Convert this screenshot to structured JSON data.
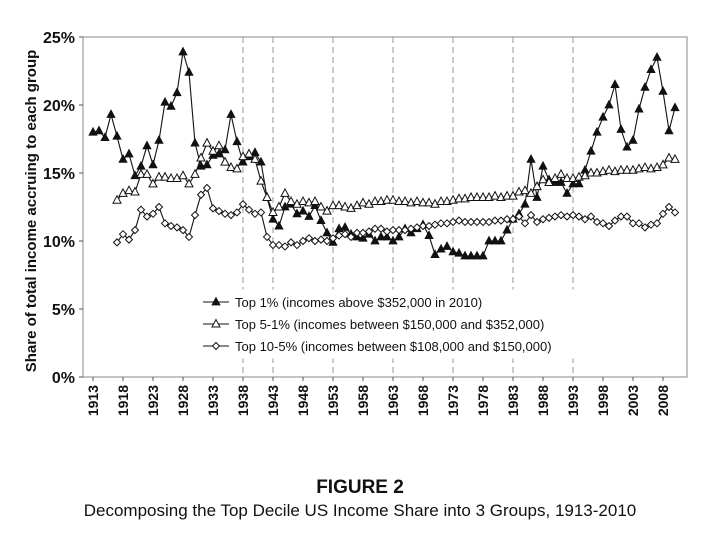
{
  "figure": {
    "title": "FIGURE 2",
    "caption": "Decomposing the Top Decile US Income Share into 3 Groups, 1913-2010"
  },
  "chart_data": {
    "type": "line",
    "ylabel": "Share of total income accruing to each group",
    "xlabel": "",
    "ylim": [
      0,
      25
    ],
    "yticks": [
      0,
      5,
      10,
      15,
      20,
      25
    ],
    "ytick_labels": [
      "0%",
      "5%",
      "10%",
      "15%",
      "20%",
      "25%"
    ],
    "xlim": [
      1913,
      2010
    ],
    "xticks": [
      1913,
      1918,
      1923,
      1928,
      1933,
      1938,
      1943,
      1948,
      1953,
      1958,
      1963,
      1968,
      1973,
      1978,
      1983,
      1988,
      1993,
      1998,
      2003,
      2008
    ],
    "vgrid_years": [
      1938,
      1943,
      1953,
      1963,
      1973,
      1983,
      1993
    ],
    "legend_position": "lower-center",
    "series": [
      {
        "name": "Top 1% (incomes above $352,000 in 2010)",
        "marker": "filled-triangle",
        "x": [
          1913,
          1914,
          1915,
          1916,
          1917,
          1918,
          1919,
          1920,
          1921,
          1922,
          1923,
          1924,
          1925,
          1926,
          1927,
          1928,
          1929,
          1930,
          1931,
          1932,
          1933,
          1934,
          1935,
          1936,
          1937,
          1938,
          1939,
          1940,
          1941,
          1942,
          1943,
          1944,
          1945,
          1946,
          1947,
          1948,
          1949,
          1950,
          1951,
          1952,
          1953,
          1954,
          1955,
          1956,
          1957,
          1958,
          1959,
          1960,
          1961,
          1962,
          1963,
          1964,
          1965,
          1966,
          1967,
          1968,
          1969,
          1970,
          1971,
          1972,
          1973,
          1974,
          1975,
          1976,
          1977,
          1978,
          1979,
          1980,
          1981,
          1982,
          1983,
          1984,
          1985,
          1986,
          1987,
          1988,
          1989,
          1990,
          1991,
          1992,
          1993,
          1994,
          1995,
          1996,
          1997,
          1998,
          1999,
          2000,
          2001,
          2002,
          2003,
          2004,
          2005,
          2006,
          2007,
          2008,
          2009,
          2010
        ],
        "values": [
          18.0,
          18.1,
          17.6,
          19.3,
          17.7,
          16.0,
          16.4,
          14.8,
          15.5,
          17.0,
          15.6,
          17.4,
          20.2,
          19.9,
          20.9,
          23.9,
          22.4,
          17.2,
          15.5,
          15.6,
          16.3,
          16.4,
          16.7,
          19.3,
          17.3,
          15.8,
          16.2,
          16.5,
          15.8,
          13.2,
          11.6,
          11.1,
          12.5,
          12.7,
          12.0,
          12.2,
          11.8,
          12.6,
          11.5,
          10.6,
          9.9,
          10.9,
          11.0,
          10.5,
          10.3,
          10.2,
          10.5,
          10.0,
          10.3,
          10.3,
          10.0,
          10.3,
          10.9,
          10.6,
          10.9,
          11.2,
          10.4,
          9.0,
          9.4,
          9.6,
          9.2,
          9.1,
          8.9,
          8.9,
          8.9,
          8.9,
          10.0,
          10.0,
          10.0,
          10.8,
          11.6,
          12.0,
          12.7,
          16.0,
          13.2,
          15.5,
          14.5,
          14.3,
          14.3,
          13.5,
          14.2,
          14.2,
          15.2,
          16.6,
          18.0,
          19.1,
          20.0,
          21.5,
          18.2,
          16.9,
          17.4,
          19.7,
          21.3,
          22.6,
          23.5,
          21.0,
          18.1,
          19.8
        ]
      },
      {
        "name": "Top 5-1% (incomes between $150,000 and $352,000)",
        "marker": "open-triangle",
        "x": [
          1917,
          1918,
          1919,
          1920,
          1921,
          1922,
          1923,
          1924,
          1925,
          1926,
          1927,
          1928,
          1929,
          1930,
          1931,
          1932,
          1933,
          1934,
          1935,
          1936,
          1937,
          1938,
          1939,
          1940,
          1941,
          1942,
          1943,
          1944,
          1945,
          1946,
          1947,
          1948,
          1949,
          1950,
          1951,
          1952,
          1953,
          1954,
          1955,
          1956,
          1957,
          1958,
          1959,
          1960,
          1961,
          1962,
          1963,
          1964,
          1965,
          1966,
          1967,
          1968,
          1969,
          1970,
          1971,
          1972,
          1973,
          1974,
          1975,
          1976,
          1977,
          1978,
          1979,
          1980,
          1981,
          1982,
          1983,
          1984,
          1985,
          1986,
          1987,
          1988,
          1989,
          1990,
          1991,
          1992,
          1993,
          1994,
          1995,
          1996,
          1997,
          1998,
          1999,
          2000,
          2001,
          2002,
          2003,
          2004,
          2005,
          2006,
          2007,
          2008,
          2009,
          2010
        ],
        "values": [
          13.0,
          13.5,
          13.7,
          13.6,
          14.9,
          14.9,
          14.2,
          14.7,
          14.7,
          14.6,
          14.6,
          14.8,
          14.2,
          14.9,
          16.1,
          17.2,
          16.6,
          17.0,
          15.8,
          15.4,
          15.3,
          16.2,
          16.4,
          16.0,
          14.4,
          13.2,
          12.1,
          12.5,
          13.5,
          12.9,
          12.7,
          12.9,
          12.8,
          12.9,
          12.5,
          12.2,
          12.6,
          12.6,
          12.5,
          12.4,
          12.6,
          12.8,
          12.7,
          12.9,
          12.9,
          13.0,
          13.0,
          12.9,
          12.9,
          12.8,
          12.9,
          12.8,
          12.8,
          12.7,
          12.9,
          12.9,
          13.0,
          13.1,
          13.1,
          13.2,
          13.2,
          13.2,
          13.2,
          13.3,
          13.2,
          13.3,
          13.3,
          13.6,
          13.7,
          13.5,
          14.0,
          14.5,
          14.3,
          14.6,
          14.9,
          14.6,
          14.6,
          14.7,
          14.8,
          15.0,
          15.0,
          15.1,
          15.2,
          15.1,
          15.2,
          15.2,
          15.2,
          15.3,
          15.4,
          15.3,
          15.4,
          15.6,
          16.1,
          16.0
        ]
      },
      {
        "name": "Top 10-5% (incomes between $108,000 and $150,000)",
        "marker": "open-diamond",
        "x": [
          1917,
          1918,
          1919,
          1920,
          1921,
          1922,
          1923,
          1924,
          1925,
          1926,
          1927,
          1928,
          1929,
          1930,
          1931,
          1932,
          1933,
          1934,
          1935,
          1936,
          1937,
          1938,
          1939,
          1940,
          1941,
          1942,
          1943,
          1944,
          1945,
          1946,
          1947,
          1948,
          1949,
          1950,
          1951,
          1952,
          1953,
          1954,
          1955,
          1956,
          1957,
          1958,
          1959,
          1960,
          1961,
          1962,
          1963,
          1964,
          1965,
          1966,
          1967,
          1968,
          1969,
          1970,
          1971,
          1972,
          1973,
          1974,
          1975,
          1976,
          1977,
          1978,
          1979,
          1980,
          1981,
          1982,
          1983,
          1984,
          1985,
          1986,
          1987,
          1988,
          1989,
          1990,
          1991,
          1992,
          1993,
          1994,
          1995,
          1996,
          1997,
          1998,
          1999,
          2000,
          2001,
          2002,
          2003,
          2004,
          2005,
          2006,
          2007,
          2008,
          2009,
          2010
        ],
        "values": [
          9.9,
          10.5,
          10.1,
          10.8,
          12.3,
          11.8,
          12.0,
          12.5,
          11.3,
          11.1,
          11.0,
          10.8,
          10.3,
          11.9,
          13.4,
          13.9,
          12.4,
          12.2,
          12.0,
          11.9,
          12.1,
          12.7,
          12.3,
          12.0,
          12.1,
          10.3,
          9.7,
          9.7,
          9.6,
          9.9,
          9.7,
          10.0,
          10.2,
          10.0,
          10.1,
          10.0,
          10.2,
          10.4,
          10.5,
          10.3,
          10.6,
          10.6,
          10.7,
          10.9,
          10.9,
          10.7,
          10.8,
          10.8,
          10.8,
          10.9,
          11.0,
          11.1,
          11.1,
          11.2,
          11.3,
          11.3,
          11.4,
          11.5,
          11.4,
          11.4,
          11.4,
          11.4,
          11.4,
          11.5,
          11.5,
          11.6,
          11.6,
          11.8,
          11.3,
          11.9,
          11.4,
          11.6,
          11.7,
          11.8,
          11.9,
          11.8,
          11.9,
          11.8,
          11.6,
          11.8,
          11.4,
          11.3,
          11.1,
          11.5,
          11.8,
          11.8,
          11.3,
          11.3,
          11.0,
          11.2,
          11.3,
          12.0,
          12.5,
          12.1
        ]
      }
    ]
  }
}
